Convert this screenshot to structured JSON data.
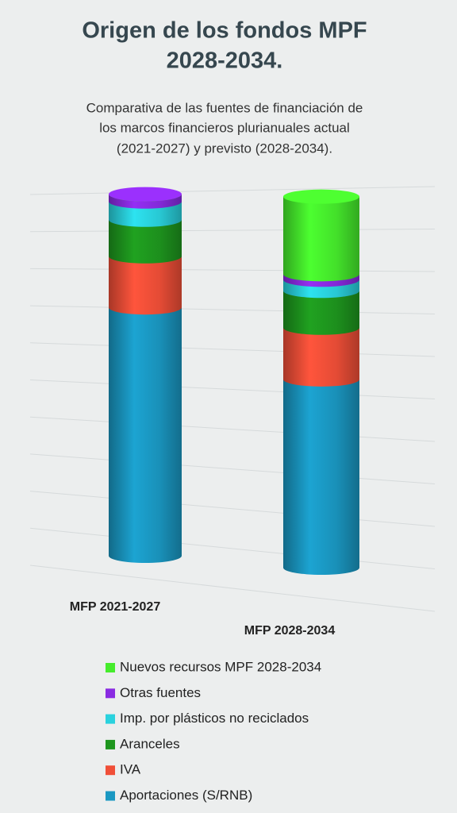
{
  "chart_data": {
    "type": "bar3d-stacked",
    "title_lines": [
      "Origen de los fondos MPF",
      "2028-2034."
    ],
    "subtitle_lines": [
      "Comparativa de las fuentes de financiación de",
      "los marcos financieros plurianuales actual",
      "(2021-2027) y previsto (2028-2034)."
    ],
    "categories": [
      "MFP 2021-2027",
      "MFP 2028-2034"
    ],
    "series": [
      {
        "name": "Aportaciones (S/RNB)",
        "color": "#1a98c2",
        "values": [
          68,
          51
        ]
      },
      {
        "name": "IVA",
        "color": "#f04f38",
        "values": [
          14,
          14
        ]
      },
      {
        "name": "Aranceles",
        "color": "#1e961e",
        "values": [
          10,
          10
        ]
      },
      {
        "name": "Imp. por plásticos no reciclados",
        "color": "#2ad2de",
        "values": [
          5,
          3
        ]
      },
      {
        "name": "Otras fuentes",
        "color": "#8a2be2",
        "values": [
          2,
          1.5
        ]
      },
      {
        "name": "Nuevos recursos MPF 2028-2034",
        "color": "#46ec2c",
        "values": [
          0,
          21
        ]
      }
    ],
    "ylim": [
      0,
      100
    ],
    "yticks": [
      0,
      10,
      20,
      30,
      40,
      50,
      60,
      70,
      80,
      90,
      100
    ],
    "grid": true
  }
}
